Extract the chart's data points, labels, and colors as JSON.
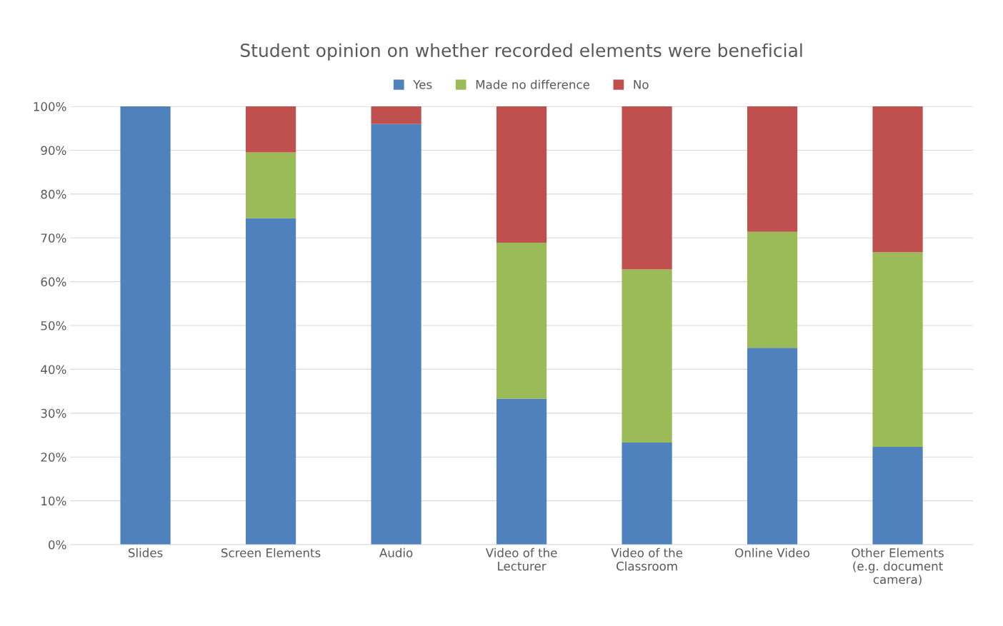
{
  "chart_data": {
    "type": "bar",
    "title": "Student opinion on whether recorded elements were beneficial",
    "categories": [
      "Slides",
      "Screen Elements",
      "Audio",
      "Video of the\nLecturer",
      "Video of the\nClassroom",
      "Online Video",
      "Other Elements\n(e.g. document\ncamera)"
    ],
    "series": [
      {
        "name": "Yes",
        "color": "#4f81bd",
        "values": [
          100,
          74.5,
          96,
          33.3,
          23.3,
          44.9,
          22.3
        ]
      },
      {
        "name": "Made no difference",
        "color": "#9bbb59",
        "values": [
          0,
          15,
          0,
          35.6,
          39.5,
          26.5,
          44.4
        ]
      },
      {
        "name": "No",
        "color": "#c0504d",
        "values": [
          0,
          10.5,
          4,
          31.1,
          37.2,
          28.6,
          33.3
        ]
      }
    ],
    "stacked": true,
    "ylim": [
      0,
      100
    ],
    "yticks": [
      {
        "value": 0,
        "label": "0%"
      },
      {
        "value": 10,
        "label": "10%"
      },
      {
        "value": 20,
        "label": "20%"
      },
      {
        "value": 30,
        "label": "30%"
      },
      {
        "value": 40,
        "label": "40%"
      },
      {
        "value": 50,
        "label": "50%"
      },
      {
        "value": 60,
        "label": "60%"
      },
      {
        "value": 70,
        "label": "70%"
      },
      {
        "value": 80,
        "label": "80%"
      },
      {
        "value": 90,
        "label": "90%"
      },
      {
        "value": 100,
        "label": "100%"
      }
    ],
    "grid": "y",
    "legend": "top"
  }
}
